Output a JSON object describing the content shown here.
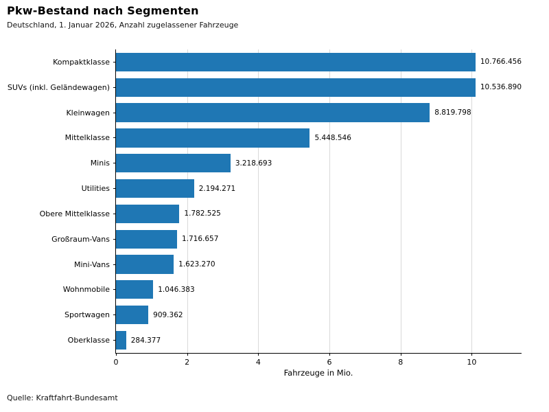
{
  "chart_data": {
    "type": "bar",
    "orientation": "horizontal",
    "title": "Pkw-Bestand nach Segmenten",
    "subtitle": "Deutschland, 1. Januar 2026, Anzahl zugelassener Fahrzeuge",
    "categories": [
      "Kompaktklasse",
      "SUVs (inkl. Geländewagen)",
      "Kleinwagen",
      "Mittelklasse",
      "Minis",
      "Utilities",
      "Obere Mittelklasse",
      "Großraum-Vans",
      "Mini-Vans",
      "Wohnmobile",
      "Sportwagen",
      "Oberklasse"
    ],
    "values": [
      10766456,
      10536890,
      8819798,
      5448546,
      3218693,
      2194271,
      1782525,
      1716657,
      1623270,
      1046383,
      909362,
      284377
    ],
    "value_labels": [
      "10.766.456",
      "10.536.890",
      "8.819.798",
      "5.448.546",
      "3.218.693",
      "2.194.271",
      "1.782.525",
      "1.716.657",
      "1.623.270",
      "1.046.383",
      "909.362",
      "284.377"
    ],
    "xlabel": "Fahrzeuge in Mio.",
    "xlim": [
      0,
      11.4
    ],
    "xticks": [
      0,
      2,
      4,
      6,
      8,
      10
    ],
    "xtick_labels": [
      "0",
      "2",
      "4",
      "6",
      "8",
      "10"
    ],
    "unit_divisor": 1000000,
    "bar_color": "#1f77b4",
    "grid": true,
    "legend": "none",
    "source": "Quelle: Kraftfahrt-Bundesamt"
  }
}
